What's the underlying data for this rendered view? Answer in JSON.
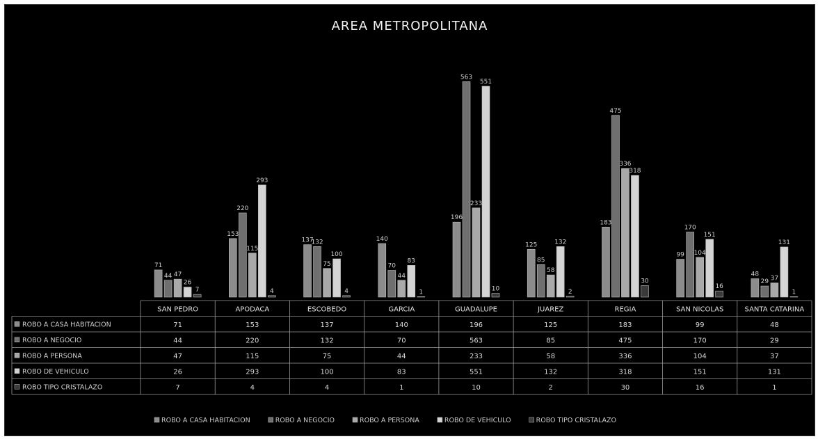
{
  "chart_data": {
    "type": "bar",
    "title": "AREA METROPOLITANA",
    "categories": [
      "SAN PEDRO",
      "APODACA",
      "ESCOBEDO",
      "GARCIA",
      "GUADALUPE",
      "JUAREZ",
      "REGIA",
      "SAN NICOLAS",
      "SANTA CATARINA"
    ],
    "series": [
      {
        "name": "ROBO A CASA HABITACION",
        "values": [
          71,
          153,
          137,
          140,
          196,
          125,
          183,
          99,
          48
        ],
        "color": "#8c8c8c"
      },
      {
        "name": "ROBO A NEGOCIO",
        "values": [
          44,
          220,
          132,
          70,
          563,
          85,
          475,
          170,
          29
        ],
        "color": "#6f6f6f"
      },
      {
        "name": "ROBO A PERSONA",
        "values": [
          47,
          115,
          75,
          44,
          233,
          58,
          336,
          104,
          37
        ],
        "color": "#a9a9a9"
      },
      {
        "name": "ROBO DE VEHICULO",
        "values": [
          26,
          293,
          100,
          83,
          551,
          132,
          318,
          151,
          131
        ],
        "color": "#d4d4d4"
      },
      {
        "name": "ROBO TIPO CRISTALAZO",
        "values": [
          7,
          4,
          4,
          1,
          10,
          2,
          30,
          16,
          1
        ],
        "color": "#3a3a3a"
      }
    ],
    "ylim": [
      0,
      600
    ],
    "legend": "bottom",
    "grid": false,
    "data_table": true
  }
}
